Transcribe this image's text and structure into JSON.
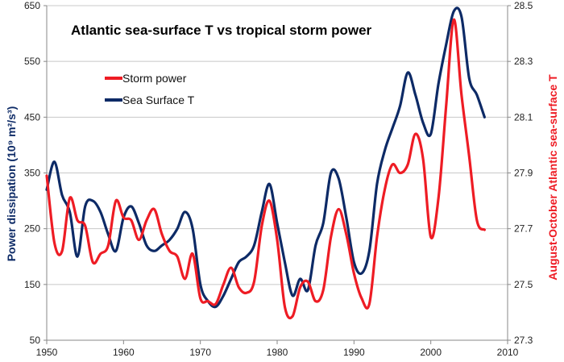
{
  "chart_data": {
    "type": "line",
    "title": "Atlantic sea-surface T vs tropical storm power",
    "xlabel": "",
    "ylabel": "Power dissipation (10⁹ m²/s³)",
    "y2label": "August-October Atlantic sea-surface T",
    "xlim": [
      1950,
      2010
    ],
    "xticks": [
      1950,
      1960,
      1970,
      1980,
      1990,
      2000,
      2010
    ],
    "ylim": [
      50,
      650
    ],
    "yticks": [
      50,
      150,
      250,
      350,
      450,
      550,
      650
    ],
    "y2lim": [
      27.3,
      28.5
    ],
    "y2ticks": [
      "27.3",
      "27.5",
      "27.7",
      "27.9",
      "28.1",
      "28.3",
      "28.5"
    ],
    "legend_position": "upper-left",
    "grid": "horizontal",
    "series": [
      {
        "name": "Storm power",
        "axis": "left",
        "color": "#ee1c24",
        "points": [
          [
            1950,
            345
          ],
          [
            1951,
            225
          ],
          [
            1952,
            210
          ],
          [
            1953,
            305
          ],
          [
            1954,
            265
          ],
          [
            1955,
            255
          ],
          [
            1956,
            190
          ],
          [
            1957,
            205
          ],
          [
            1958,
            220
          ],
          [
            1959,
            300
          ],
          [
            1960,
            270
          ],
          [
            1961,
            265
          ],
          [
            1962,
            230
          ],
          [
            1963,
            265
          ],
          [
            1964,
            285
          ],
          [
            1965,
            240
          ],
          [
            1966,
            210
          ],
          [
            1967,
            200
          ],
          [
            1968,
            160
          ],
          [
            1969,
            205
          ],
          [
            1970,
            125
          ],
          [
            1971,
            120
          ],
          [
            1972,
            115
          ],
          [
            1973,
            150
          ],
          [
            1974,
            180
          ],
          [
            1975,
            145
          ],
          [
            1976,
            135
          ],
          [
            1977,
            155
          ],
          [
            1978,
            255
          ],
          [
            1979,
            300
          ],
          [
            1980,
            230
          ],
          [
            1981,
            110
          ],
          [
            1982,
            93
          ],
          [
            1983,
            145
          ],
          [
            1984,
            155
          ],
          [
            1985,
            120
          ],
          [
            1986,
            140
          ],
          [
            1987,
            235
          ],
          [
            1988,
            285
          ],
          [
            1989,
            240
          ],
          [
            1990,
            170
          ],
          [
            1991,
            125
          ],
          [
            1992,
            115
          ],
          [
            1993,
            235
          ],
          [
            1994,
            320
          ],
          [
            1995,
            365
          ],
          [
            1996,
            350
          ],
          [
            1997,
            365
          ],
          [
            1998,
            420
          ],
          [
            1999,
            375
          ],
          [
            2000,
            235
          ],
          [
            2001,
            305
          ],
          [
            2002,
            470
          ],
          [
            2003,
            625
          ],
          [
            2004,
            490
          ],
          [
            2005,
            380
          ],
          [
            2006,
            265
          ],
          [
            2007,
            248
          ]
        ]
      },
      {
        "name": "Sea Surface T",
        "axis": "right",
        "color": "#0d2a66",
        "points": [
          [
            1950,
            27.84
          ],
          [
            1951,
            27.94
          ],
          [
            1952,
            27.82
          ],
          [
            1953,
            27.76
          ],
          [
            1954,
            27.6
          ],
          [
            1955,
            27.78
          ],
          [
            1956,
            27.8
          ],
          [
            1957,
            27.76
          ],
          [
            1958,
            27.68
          ],
          [
            1959,
            27.62
          ],
          [
            1960,
            27.74
          ],
          [
            1961,
            27.78
          ],
          [
            1962,
            27.72
          ],
          [
            1963,
            27.64
          ],
          [
            1964,
            27.62
          ],
          [
            1965,
            27.64
          ],
          [
            1966,
            27.66
          ],
          [
            1967,
            27.7
          ],
          [
            1968,
            27.76
          ],
          [
            1969,
            27.7
          ],
          [
            1970,
            27.5
          ],
          [
            1971,
            27.44
          ],
          [
            1972,
            27.42
          ],
          [
            1973,
            27.46
          ],
          [
            1974,
            27.52
          ],
          [
            1975,
            27.58
          ],
          [
            1976,
            27.6
          ],
          [
            1977,
            27.64
          ],
          [
            1978,
            27.76
          ],
          [
            1979,
            27.86
          ],
          [
            1980,
            27.72
          ],
          [
            1981,
            27.58
          ],
          [
            1982,
            27.46
          ],
          [
            1983,
            27.52
          ],
          [
            1984,
            27.48
          ],
          [
            1985,
            27.64
          ],
          [
            1986,
            27.72
          ],
          [
            1987,
            27.9
          ],
          [
            1988,
            27.88
          ],
          [
            1989,
            27.74
          ],
          [
            1990,
            27.58
          ],
          [
            1991,
            27.54
          ],
          [
            1992,
            27.62
          ],
          [
            1993,
            27.86
          ],
          [
            1994,
            27.98
          ],
          [
            1995,
            28.06
          ],
          [
            1996,
            28.14
          ],
          [
            1997,
            28.26
          ],
          [
            1998,
            28.18
          ],
          [
            1999,
            28.08
          ],
          [
            2000,
            28.04
          ],
          [
            2001,
            28.22
          ],
          [
            2002,
            28.36
          ],
          [
            2003,
            28.48
          ],
          [
            2004,
            28.46
          ],
          [
            2005,
            28.24
          ],
          [
            2006,
            28.18
          ],
          [
            2007,
            28.1
          ]
        ]
      }
    ]
  }
}
